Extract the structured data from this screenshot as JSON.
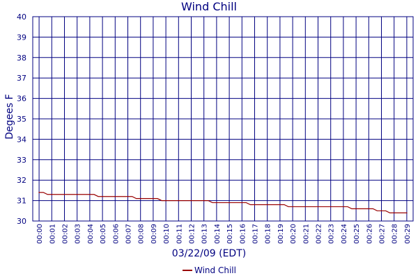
{
  "chart_data": {
    "type": "line",
    "title": "Wind Chill",
    "xlabel": "03/22/09 (EDT)",
    "ylabel": "Degees F",
    "x": [
      "00:00",
      "00:01",
      "00:02",
      "00:03",
      "00:04",
      "00:05",
      "00:06",
      "00:07",
      "00:08",
      "00:09",
      "00:10",
      "00:11",
      "00:12",
      "00:13",
      "00:14",
      "00:15",
      "00:16",
      "00:17",
      "00:18",
      "00:19",
      "00:20",
      "00:21",
      "00:22",
      "00:23",
      "00:24",
      "00:25",
      "00:26",
      "00:27",
      "00:28",
      "00:29"
    ],
    "ylim": [
      30,
      40
    ],
    "yticks": [
      30,
      31,
      32,
      33,
      34,
      35,
      36,
      37,
      38,
      39,
      40
    ],
    "grid": true,
    "series": [
      {
        "name": "Wind Chill",
        "color": "#990000",
        "values": [
          31.4,
          31.3,
          31.3,
          31.3,
          31.3,
          31.2,
          31.2,
          31.2,
          31.1,
          31.1,
          31.0,
          31.0,
          31.0,
          31.0,
          30.9,
          30.9,
          30.9,
          30.8,
          30.8,
          30.8,
          30.7,
          30.7,
          30.7,
          30.7,
          30.7,
          30.6,
          30.6,
          30.5,
          30.4,
          30.4
        ]
      }
    ],
    "legend_position": "bottom",
    "axis_color": "#000080"
  }
}
